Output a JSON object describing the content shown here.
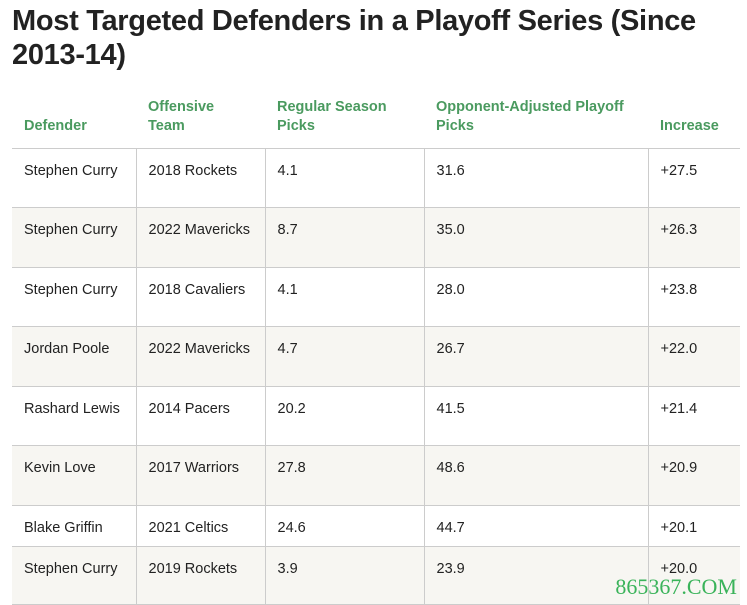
{
  "title": "Most Targeted Defenders in a Playoff Series (Since 2013-14)",
  "accent": "#4a9a5f",
  "headers": [
    "Defender",
    "Offensive Team",
    "Regular Season Picks",
    "Opponent-Adjusted Playoff Picks",
    "Increase"
  ],
  "rows": [
    [
      "Stephen Curry",
      "2018 Rockets",
      "4.1",
      "31.6",
      "+27.5"
    ],
    [
      "Stephen Curry",
      "2022 Mavericks",
      "8.7",
      "35.0",
      "+26.3"
    ],
    [
      "Stephen Curry",
      "2018 Cavaliers",
      "4.1",
      "28.0",
      "+23.8"
    ],
    [
      "Jordan Poole",
      "2022 Mavericks",
      "4.7",
      "26.7",
      "+22.0"
    ],
    [
      "Rashard Lewis",
      "2014 Pacers",
      "20.2",
      "41.5",
      "+21.4"
    ],
    [
      "Kevin Love",
      "2017 Warriors",
      "27.8",
      "48.6",
      "+20.9"
    ],
    [
      "Blake Griffin",
      "2021 Celtics",
      "24.6",
      "44.7",
      "+20.1"
    ],
    [
      "Stephen Curry",
      "2019 Rockets",
      "3.9",
      "23.9",
      "+20.0"
    ]
  ],
  "watermark": "865367.COM"
}
